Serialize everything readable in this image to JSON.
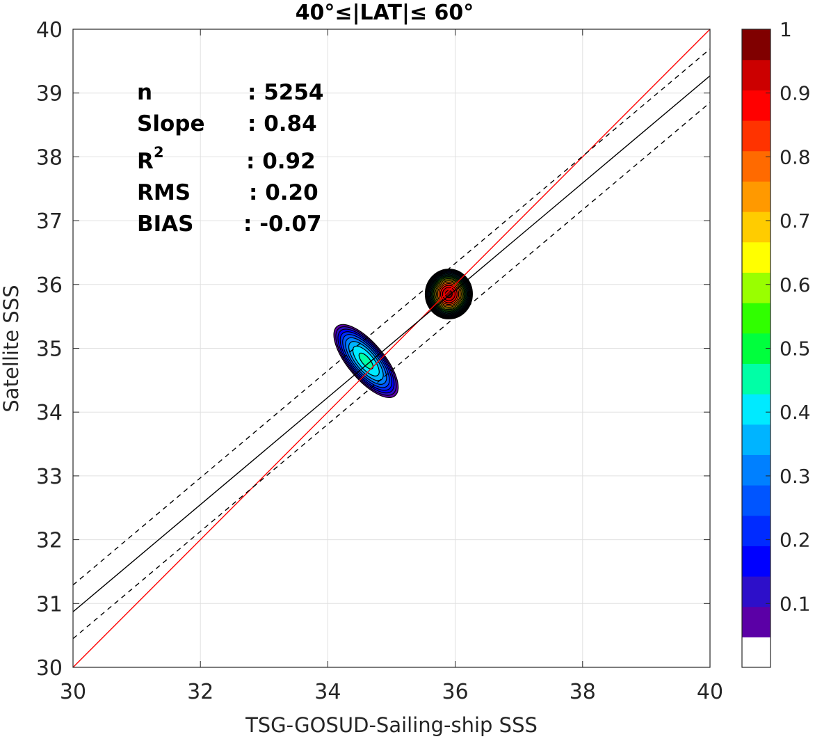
{
  "chart_data": {
    "type": "contour",
    "title": "40°≤|LAT|≤ 60°",
    "xlabel": "TSG-GOSUD-Sailing-ship SSS",
    "ylabel": "Satellite SSS",
    "xlim": [
      30,
      40
    ],
    "ylim": [
      30,
      40
    ],
    "xticks": [
      "30",
      "32",
      "34",
      "36",
      "38",
      "40"
    ],
    "yticks": [
      "30",
      "31",
      "32",
      "33",
      "34",
      "35",
      "36",
      "37",
      "38",
      "39",
      "40"
    ],
    "grid": true,
    "stats": {
      "n_label": "n",
      "n_value": ": 5254",
      "slope_label": "Slope",
      "slope_value": ": 0.84",
      "r2_label": "R",
      "r2_sup": "2",
      "r2_value": ": 0.92",
      "rms_label": "RMS",
      "rms_value": ": 0.20",
      "bias_label": "BIAS",
      "bias_value": ": -0.07"
    },
    "lines": [
      {
        "id": "one-to-one",
        "color": "#ff0000",
        "style": "solid",
        "points": [
          [
            30,
            30
          ],
          [
            40,
            40
          ]
        ]
      },
      {
        "id": "regression-fit",
        "color": "#000000",
        "style": "solid",
        "points": [
          [
            30,
            30.87
          ],
          [
            40,
            39.27
          ]
        ]
      },
      {
        "id": "fit-upper-bound",
        "color": "#000000",
        "style": "dashed",
        "points": [
          [
            30,
            31.29
          ],
          [
            40,
            39.69
          ]
        ]
      },
      {
        "id": "fit-lower-bound",
        "color": "#000000",
        "style": "dashed",
        "points": [
          [
            30,
            30.45
          ],
          [
            40,
            38.85
          ]
        ]
      }
    ],
    "density_clusters": [
      {
        "name": "cluster-35",
        "cx": 34.6,
        "cy": 34.8,
        "rx": 0.3,
        "ry": 0.75,
        "angle": -40,
        "peak": 0.45
      },
      {
        "name": "cluster-36",
        "cx": 35.9,
        "cy": 35.85,
        "rx": 0.38,
        "ry": 0.4,
        "angle": 0,
        "peak": 1.0
      }
    ],
    "colorbar": {
      "range": [
        0,
        1
      ],
      "ticks": [
        "0.1",
        "0.2",
        "0.3",
        "0.4",
        "0.5",
        "0.6",
        "0.7",
        "0.8",
        "0.9",
        "1"
      ],
      "colors": [
        "#ffffff",
        "#5b00a6",
        "#2d0fc9",
        "#0000ff",
        "#002bff",
        "#0055ff",
        "#0080ff",
        "#00b4ff",
        "#00eaff",
        "#00ffa6",
        "#00ff3d",
        "#30ff00",
        "#99ff00",
        "#ffff00",
        "#ffcc00",
        "#ff9900",
        "#ff6a00",
        "#ff3300",
        "#ff0000",
        "#cc0000",
        "#800000"
      ]
    }
  }
}
